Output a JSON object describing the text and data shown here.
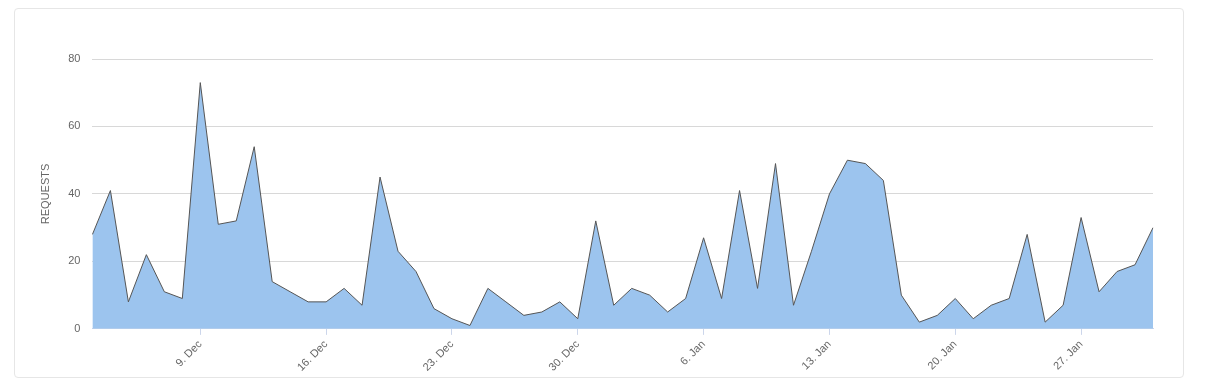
{
  "chart_data": {
    "type": "area",
    "ylabel": "REQUESTS",
    "categories": [
      null,
      null,
      null,
      null,
      null,
      null,
      "9. Dec",
      null,
      null,
      null,
      null,
      null,
      null,
      "16. Dec",
      null,
      null,
      null,
      null,
      null,
      null,
      "23. Dec",
      null,
      null,
      null,
      null,
      null,
      null,
      "30. Dec",
      null,
      null,
      null,
      null,
      null,
      null,
      "6. Jan",
      null,
      null,
      null,
      null,
      null,
      null,
      "13. Jan",
      null,
      null,
      null,
      null,
      null,
      null,
      "20. Jan",
      null,
      null,
      null,
      null,
      null,
      null,
      "27. Jan",
      null,
      null,
      null,
      null
    ],
    "values": [
      28,
      41,
      8,
      22,
      11,
      9,
      73,
      31,
      32,
      54,
      14,
      11,
      8,
      8,
      12,
      7,
      45,
      23,
      17,
      6,
      3,
      1,
      12,
      8,
      4,
      5,
      8,
      3,
      32,
      7,
      12,
      10,
      5,
      9,
      27,
      9,
      41,
      12,
      49,
      7,
      23,
      40,
      50,
      49,
      44,
      10,
      2,
      4,
      9,
      3,
      7,
      9,
      28,
      2,
      7,
      33,
      11,
      17,
      19,
      30
    ],
    "color": "#9cc4ee",
    "ylim": [
      0,
      80
    ],
    "yticks": [
      0,
      20,
      40,
      60,
      80
    ],
    "grid": "y",
    "legend": false
  }
}
